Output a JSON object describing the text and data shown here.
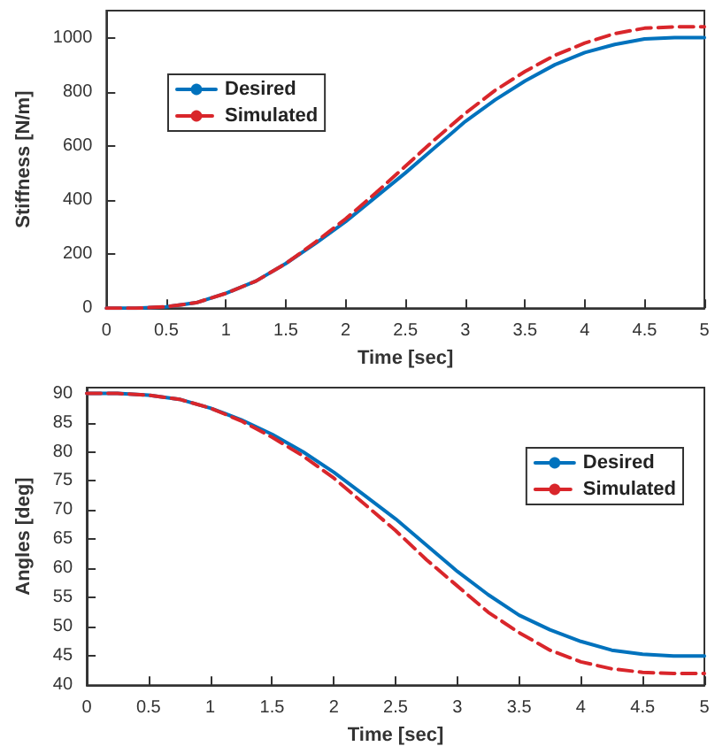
{
  "chart_data": [
    {
      "type": "line",
      "x": [
        0,
        0.25,
        0.5,
        0.75,
        1,
        1.25,
        1.5,
        1.75,
        2,
        2.25,
        2.5,
        2.75,
        3,
        3.25,
        3.5,
        3.75,
        4,
        4.25,
        4.5,
        4.75,
        5
      ],
      "xlabel": "Time [sec]",
      "ylabel": "Stiffness [N/m]",
      "xlim": [
        0,
        5
      ],
      "xticks": [
        0,
        0.5,
        1,
        1.5,
        2,
        2.5,
        3,
        3.5,
        4,
        4.5,
        5
      ],
      "ylim": [
        0,
        1100
      ],
      "yticks": [
        0,
        200,
        400,
        600,
        800,
        1000
      ],
      "grid": false,
      "legend": "top left",
      "series": [
        {
          "name": "Desired",
          "color": "#0072bd",
          "line_style": "solid",
          "values": [
            0,
            0,
            5,
            20,
            55,
            100,
            165,
            240,
            320,
            410,
            500,
            595,
            690,
            770,
            840,
            900,
            945,
            975,
            995,
            1000,
            1000
          ]
        },
        {
          "name": "Simulated",
          "color": "#d9262b",
          "line_style": "dashed",
          "values": [
            0,
            0,
            5,
            20,
            55,
            100,
            165,
            245,
            330,
            425,
            525,
            625,
            720,
            805,
            875,
            935,
            980,
            1015,
            1035,
            1040,
            1040
          ]
        }
      ]
    },
    {
      "type": "line",
      "x": [
        0,
        0.25,
        0.5,
        0.75,
        1,
        1.25,
        1.5,
        1.75,
        2,
        2.25,
        2.5,
        2.75,
        3,
        3.25,
        3.5,
        3.75,
        4,
        4.25,
        4.5,
        4.75,
        5
      ],
      "xlabel": "Time [sec]",
      "ylabel": "Angles [deg]",
      "xlim": [
        0,
        5
      ],
      "xticks": [
        0,
        0.5,
        1,
        1.5,
        2,
        2.5,
        3,
        3.5,
        4,
        4.5,
        5
      ],
      "ylim": [
        40,
        91
      ],
      "yticks": [
        40,
        45,
        50,
        55,
        60,
        65,
        70,
        75,
        80,
        85,
        90
      ],
      "grid": false,
      "legend": "top right",
      "series": [
        {
          "name": "Desired",
          "color": "#0072bd",
          "line_style": "solid",
          "values": [
            90,
            90,
            89.7,
            89,
            87.5,
            85.5,
            83,
            80,
            76.5,
            72.5,
            68.5,
            64,
            59.5,
            55.5,
            52,
            49.5,
            47.5,
            46,
            45.3,
            45,
            45
          ]
        },
        {
          "name": "Simulated",
          "color": "#d9262b",
          "line_style": "dashed",
          "values": [
            90,
            90,
            89.7,
            89,
            87.5,
            85.3,
            82.5,
            79.3,
            75.5,
            71,
            66.5,
            61.5,
            57,
            52.5,
            49,
            46,
            44,
            42.8,
            42.2,
            42,
            42
          ]
        }
      ]
    }
  ]
}
